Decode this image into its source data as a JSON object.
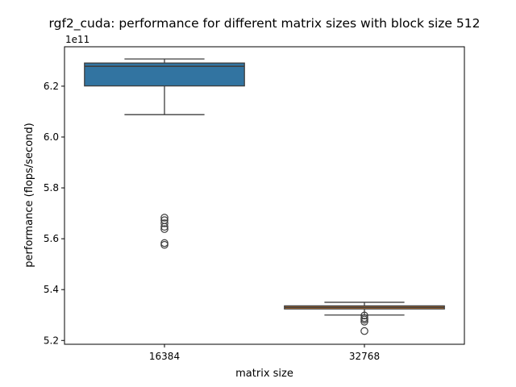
{
  "chart_data": {
    "type": "box",
    "title": "rgf2_cuda: performance for different matrix sizes with block size 512",
    "xlabel": "matrix size",
    "ylabel": "performance (flops/second)",
    "y_offset_label": "1e11",
    "y_scale": 100000000000.0,
    "ylim": [
      5.185,
      6.355
    ],
    "yticks": [
      5.2,
      5.4,
      5.6,
      5.8,
      6.0,
      6.2
    ],
    "ytick_labels": [
      "5.2",
      "5.4",
      "5.6",
      "5.8",
      "6.0",
      "6.2"
    ],
    "grid": false,
    "categories": [
      "16384",
      "32768"
    ],
    "boxes": [
      {
        "category": "16384",
        "color": "#3274a1",
        "whisker_low": 6.088,
        "q1": 6.201,
        "median": 6.278,
        "q3": 6.291,
        "whisker_high": 6.307,
        "outliers": [
          5.683,
          5.673,
          5.661,
          5.647,
          5.638,
          5.583,
          5.576
        ]
      },
      {
        "category": "32768",
        "color": "#e1812c",
        "whisker_low": 5.3,
        "q1": 5.324,
        "median": 5.33,
        "q3": 5.336,
        "whisker_high": 5.35,
        "outliers": [
          5.298,
          5.288,
          5.282,
          5.274,
          5.237
        ]
      }
    ]
  }
}
